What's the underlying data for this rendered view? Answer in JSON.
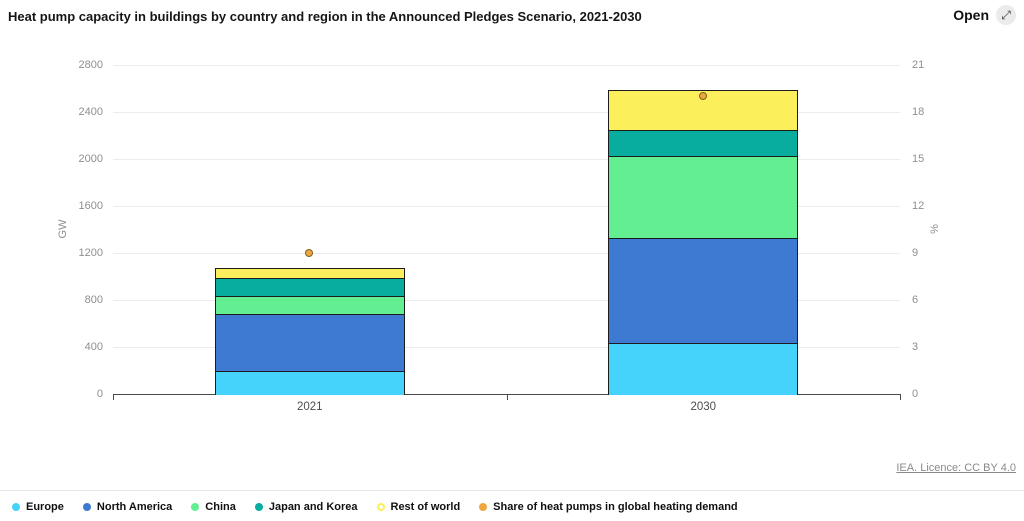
{
  "header": {
    "title": "Heat pump capacity in buildings by country and region in the Announced Pledges Scenario, 2021-2030",
    "open_label": "Open",
    "open_icon": "expand-arrows"
  },
  "footer": {
    "licence": "IEA. Licence: CC BY 4.0"
  },
  "colors": {
    "europe": "#45d3fb",
    "north_america": "#3e7ad1",
    "china": "#63ee91",
    "japan_and_korea": "#09ada0",
    "rest_of_world": "#fbef5b",
    "share_point": "#f0a63e",
    "gridline": "#ececec",
    "axis": "#4a4a4a"
  },
  "chart_data": {
    "type": "bar",
    "stacked": true,
    "title": "Heat pump capacity in buildings by country and region in the Announced Pledges Scenario, 2021-2030",
    "categories": [
      "2021",
      "2030"
    ],
    "series": [
      {
        "name": "Europe",
        "color": "#45d3fb",
        "values": [
          205,
          445
        ]
      },
      {
        "name": "North America",
        "color": "#3e7ad1",
        "values": [
          480,
          895
        ]
      },
      {
        "name": "China",
        "color": "#63ee91",
        "values": [
          155,
          695
        ]
      },
      {
        "name": "Japan and Korea",
        "color": "#09ada0",
        "values": [
          155,
          220
        ]
      },
      {
        "name": "Rest of world",
        "color": "#fbef5b",
        "values": [
          75,
          330
        ],
        "marker": "ring"
      }
    ],
    "point_series": {
      "name": "Share of heat pumps in global heating demand",
      "color": "#f0a63e",
      "values": [
        9,
        19
      ],
      "axis": "right"
    },
    "left_axis": {
      "label": "GW",
      "min": 0,
      "max": 2800,
      "ticks": [
        0,
        400,
        800,
        1200,
        1600,
        2000,
        2400,
        2800
      ]
    },
    "right_axis": {
      "label": "%",
      "min": 0,
      "max": 21,
      "ticks": [
        0,
        3,
        6,
        9,
        12,
        15,
        18,
        21
      ]
    },
    "legend_position": "bottom",
    "grid": true
  }
}
